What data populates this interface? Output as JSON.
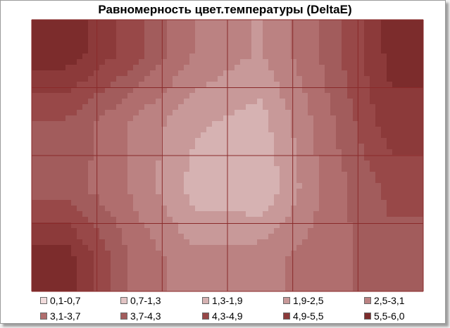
{
  "chart_data": {
    "type": "heatmap",
    "title": "Равномерность цвет.температуры (DeltaE)",
    "grid": true,
    "legend_position": "bottom",
    "rows": 4,
    "cols": 6,
    "values": [
      [
        5.8,
        4.6,
        3.0,
        2.4,
        3.8,
        5.6
      ],
      [
        4.2,
        3.0,
        2.0,
        1.6,
        3.4,
        5.2
      ],
      [
        4.0,
        3.0,
        1.6,
        1.3,
        3.2,
        4.4
      ],
      [
        5.8,
        3.6,
        2.6,
        2.8,
        3.4,
        4.0
      ]
    ],
    "bands": [
      {
        "label": "0,1-0,7",
        "color": "#f2dcdc"
      },
      {
        "label": "0,7-1,3",
        "color": "#e2c4c4"
      },
      {
        "label": "1,3-1,9",
        "color": "#d6b2b2"
      },
      {
        "label": "1,9-2,5",
        "color": "#c89999"
      },
      {
        "label": "2,5-3,1",
        "color": "#bb8282"
      },
      {
        "label": "3,1-3,7",
        "color": "#b06e6e"
      },
      {
        "label": "3,7-4,3",
        "color": "#a25c5c"
      },
      {
        "label": "4,3-4,9",
        "color": "#984848"
      },
      {
        "label": "4,9-5,5",
        "color": "#8c3a3a"
      },
      {
        "label": "5,5-6,0",
        "color": "#7c2c2c"
      }
    ]
  }
}
